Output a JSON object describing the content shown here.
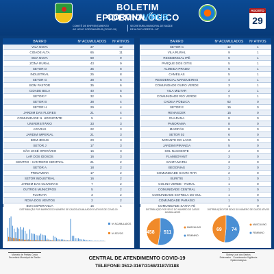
{
  "header": {
    "title_line1": "BOLETIM EPIDEMIOLÓGICO",
    "title_line2_a": "CORONA",
    "title_line2_b": "VÍRUS",
    "committee_line1": "COMITÊ DE ENFRENTAMENTO",
    "committee_line2": "AO NOVO CORONAVÍRUS (COVID-19)",
    "secretary_line1": "SECRETARIA MUNICIPAL DE SAÚDE",
    "secretary_line2": "DE ALTA FLORESTA - MT",
    "month": "AGOSTO",
    "day": "29"
  },
  "columns": {
    "bairro": "BAIRRO",
    "acumulados": "Nº ACUMULADOS",
    "ativos": "Nº ATIVOS"
  },
  "left_table": [
    {
      "bairro": "VILA NOVA",
      "acum": "37",
      "ativ": "12"
    },
    {
      "bairro": "CIDADE ALTA",
      "acum": "65",
      "ativ": "11"
    },
    {
      "bairro": "BOA NOVA",
      "acum": "69",
      "ativ": "9"
    },
    {
      "bairro": "ZONA RURAL",
      "acum": "43",
      "ativ": "9"
    },
    {
      "bairro": "SETOR D",
      "acum": "35",
      "ativ": "8"
    },
    {
      "bairro": "INDUSTRIAL",
      "acum": "25",
      "ativ": "8"
    },
    {
      "bairro": "SETOR G",
      "acum": "38",
      "ativ": "6"
    },
    {
      "bairro": "BOM PASTOR",
      "acum": "35",
      "ativ": "6"
    },
    {
      "bairro": "CIDADE BELA",
      "acum": "40",
      "ativ": "5"
    },
    {
      "bairro": "SETOR F",
      "acum": "32",
      "ativ": "5"
    },
    {
      "bairro": "SETOR B",
      "acum": "38",
      "ativ": "4"
    },
    {
      "bairro": "SETOR H",
      "acum": "29",
      "ativ": "4"
    },
    {
      "bairro": "JARDIM DAS FLORES",
      "acum": "21",
      "ativ": "4"
    },
    {
      "bairro": "COMUNIDADE N. HORIZONTE",
      "acum": "5",
      "ativ": "4"
    },
    {
      "bairro": "UNIVERSITÁRIO",
      "acum": "33",
      "ativ": "3"
    },
    {
      "bairro": "ARARAS",
      "acum": "22",
      "ativ": "3"
    },
    {
      "bairro": "JARDIM IMPERIAL",
      "acum": "21",
      "ativ": "3"
    },
    {
      "bairro": "BOM JESUS",
      "acum": "20",
      "ativ": "3"
    },
    {
      "bairro": "SETOR J",
      "acum": "17",
      "ativ": "3"
    },
    {
      "bairro": "SÃO JOSÉ OPERÁRIO",
      "acum": "16",
      "ativ": "3"
    },
    {
      "bairro": "LAR DOS IDOSOS",
      "acum": "16",
      "ativ": "3"
    },
    {
      "bairro": "CENTRO - CANTEIRO CENTRAL",
      "acum": "21",
      "ativ": "2"
    },
    {
      "bairro": "SETOR A",
      "acum": "18",
      "ativ": "2"
    },
    {
      "bairro": "PRIMAVERA",
      "acum": "17",
      "ativ": "2"
    },
    {
      "bairro": "SETOR INDUSTRIAL",
      "acum": "16",
      "ativ": "2"
    },
    {
      "bairro": "JARDIM DAS OLIVEIRAS",
      "acum": "7",
      "ativ": "2"
    },
    {
      "bairro": "OUTROS MUNICÍPIOS",
      "acum": "5",
      "ativ": "2"
    },
    {
      "bairro": "FLORATA",
      "acum": "3",
      "ativ": "2"
    },
    {
      "bairro": "ROSA DOS VENTOS",
      "acum": "2",
      "ativ": "2"
    },
    {
      "bairro": "BOA ESPERANÇA",
      "acum": "15",
      "ativ": "1"
    }
  ],
  "right_table": [
    {
      "bairro": "SETOR C",
      "acum": "12",
      "ativ": "1"
    },
    {
      "bairro": "VILA RURAL",
      "acum": "9",
      "ativ": "1"
    },
    {
      "bairro": "RESIDENCIAL IPÊ",
      "acum": "6",
      "ativ": "1"
    },
    {
      "bairro": "PARQUE DOS OITIS",
      "acum": "5",
      "ativ": "1"
    },
    {
      "bairro": "ALMEIDA PRADO",
      "acum": "5",
      "ativ": "1"
    },
    {
      "bairro": "CAMÉLIAS",
      "acum": "5",
      "ativ": "1"
    },
    {
      "bairro": "RESIDENCIAL MANGUEIRAS",
      "acum": "4",
      "ativ": "1"
    },
    {
      "bairro": "COMUNIDADE OURO VERDE",
      "acum": "3",
      "ativ": "1"
    },
    {
      "bairro": "VILA MILITAR",
      "acum": "2",
      "ativ": "1"
    },
    {
      "bairro": "COMUNIDADE RIO VERDE",
      "acum": "2",
      "ativ": "1"
    },
    {
      "bairro": "CADEIA PÚBLICA",
      "acum": "62",
      "ativ": "0"
    },
    {
      "bairro": "SETOR E",
      "acum": "15",
      "ativ": "0"
    },
    {
      "bairro": "RENASCER",
      "acum": "15",
      "ativ": "0"
    },
    {
      "bairro": "GUARANA",
      "acum": "8",
      "ativ": "0"
    },
    {
      "bairro": "PANORAMA",
      "acum": "8",
      "ativ": "0"
    },
    {
      "bairro": "MARIPÁS",
      "acum": "8",
      "ativ": "0"
    },
    {
      "bairro": "SETOR 02",
      "acum": "6",
      "ativ": "0"
    },
    {
      "bairro": "MIRANTE DO LAGO",
      "acum": "5",
      "ativ": "0"
    },
    {
      "bairro": "JARDIM IPIRANGA",
      "acum": "5",
      "ativ": "0"
    },
    {
      "bairro": "SOL NASCENTE",
      "acum": "4",
      "ativ": "0"
    },
    {
      "bairro": "FLAMBOYANT",
      "acum": "3",
      "ativ": "0"
    },
    {
      "bairro": "SANTA MARIA",
      "acum": "3",
      "ativ": "0"
    },
    {
      "bairro": "BEGONIAS",
      "acum": "2",
      "ativ": "0"
    },
    {
      "bairro": "COMUNIDADE SANTA RITA",
      "acum": "2",
      "ativ": "0"
    },
    {
      "bairro": "BURITIS",
      "acum": "1",
      "ativ": "0"
    },
    {
      "bairro": "COLINA VERDE - RURAL",
      "acum": "1",
      "ativ": "0"
    },
    {
      "bairro": "COMUNIDADE CENTRAL",
      "acum": "1",
      "ativ": "0"
    },
    {
      "bairro": "COMUNIDADE ESTRELA DO SUL",
      "acum": "1",
      "ativ": "0"
    },
    {
      "bairro": "COMUNIDADE PARAÍSO",
      "acum": "1",
      "ativ": "0"
    },
    {
      "bairro": "COMUNIDADE SANTA FÉ",
      "acum": "1",
      "ativ": "0"
    },
    {
      "bairro": "PARQUE DOS LAGOS",
      "acum": "1",
      "ativ": "0"
    },
    {
      "bairro": "JARDIM EUROPA",
      "acum": "1",
      "ativ": "0"
    }
  ],
  "bar_chart": {
    "title": "DISTRIBUIÇÃO POR BAIRROS DO NÚMERO DE CASOS ACUMULADOS E ATIVOS DE COVID-19",
    "legend_acum": "Nº ACUMULADOS",
    "legend_ativ": "Nº ATIVOS",
    "color_acum": "#4a8fd4",
    "color_ativ": "#f08a2a"
  },
  "pie_left": {
    "title": "DISTRIBUIÇÃO POR SEXO DO NÚMERO DE CASOS ACUMULADOS",
    "legend_m": "MASCULINO",
    "legend_f": "FEMININO",
    "value_m": "458",
    "value_f": "511",
    "num_m": 458,
    "num_f": 511,
    "color_m": "#f08a2a",
    "color_f": "#4a8fd4"
  },
  "pie_right": {
    "title": "DISTRIBUIÇÃO POR SEXO DO NÚMERO DE CASOS ATIVOS",
    "legend_m": "MASCULINO",
    "legend_f": "FEMININO",
    "value_m": "69",
    "value_f": "74",
    "num_m": 69,
    "num_f": 74,
    "color_m": "#f08a2a",
    "color_f": "#4a8fd4"
  },
  "footer": {
    "sig_left_name": "Marcelo de Freitas Costa",
    "sig_left_role": "Secretário Municipal de Saúde",
    "central": "CENTRAL DE ATENDIMENTO COVID-19",
    "phone": "TELEFONE:3512-3167/3168/3187/3188",
    "sig_right_name": "Sidney Leal dos Santos",
    "sig_right_role": "Enfermeiro - Coordenador Vigilância Epidemiológica"
  }
}
